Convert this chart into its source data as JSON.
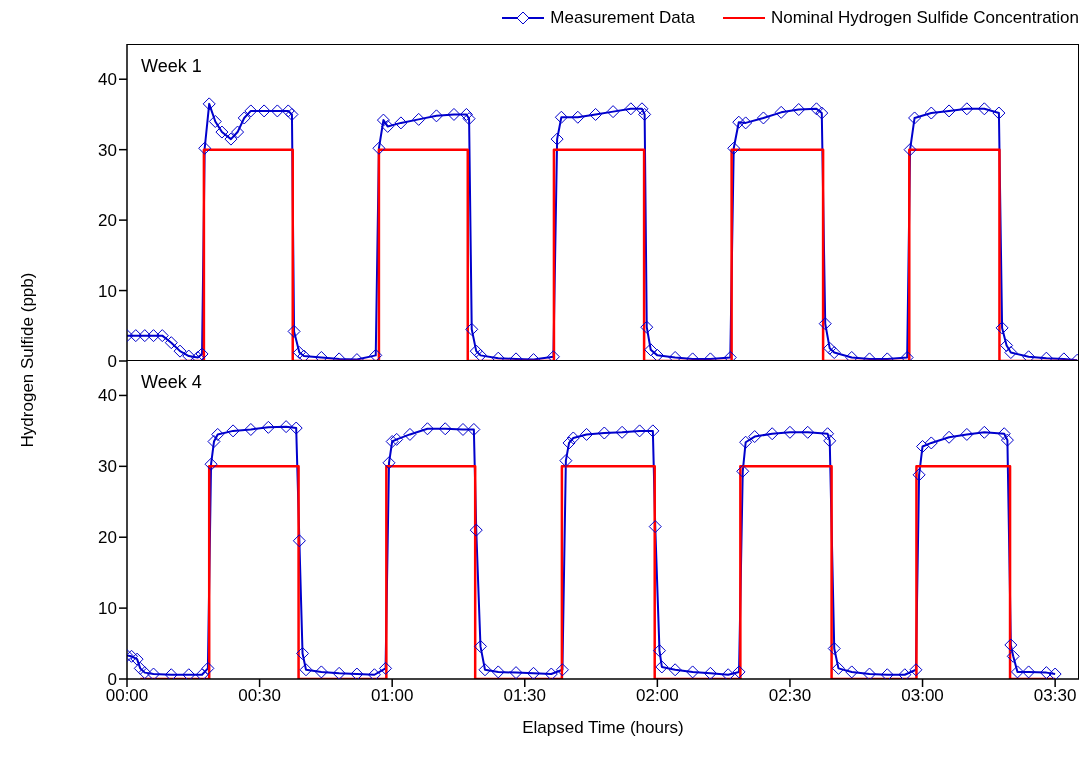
{
  "chart_data": [
    {
      "type": "line",
      "title": "Week 1",
      "ylabel": "Hydrogen Sulfide (ppb)",
      "legend": "top",
      "tick_labels": "y",
      "xlim": [
        0,
        3.59
      ],
      "ylim": [
        0,
        45
      ],
      "yticks": [
        0,
        10,
        20,
        30,
        40
      ],
      "series": [
        {
          "name": "Measurement Data",
          "color": "#0000cc",
          "marker": "diamond",
          "x": [
            0,
            0.033,
            0.067,
            0.1,
            0.133,
            0.167,
            0.2,
            0.233,
            0.267,
            0.283,
            0.293,
            0.31,
            0.333,
            0.358,
            0.392,
            0.417,
            0.442,
            0.467,
            0.517,
            0.567,
            0.608,
            0.622,
            0.63,
            0.65,
            0.667,
            0.733,
            0.8,
            0.867,
            0.938,
            0.95,
            0.967,
            0.983,
            1.033,
            1.1,
            1.167,
            1.233,
            1.28,
            1.29,
            1.3,
            1.317,
            1.333,
            1.4,
            1.467,
            1.533,
            1.608,
            1.622,
            1.638,
            1.7,
            1.767,
            1.833,
            1.9,
            1.942,
            1.952,
            1.96,
            1.975,
            2.0,
            2.067,
            2.133,
            2.2,
            2.275,
            2.288,
            2.307,
            2.333,
            2.4,
            2.467,
            2.533,
            2.6,
            2.62,
            2.633,
            2.65,
            2.667,
            2.733,
            2.8,
            2.867,
            2.942,
            2.953,
            2.97,
            3.033,
            3.1,
            3.167,
            3.233,
            3.288,
            3.3,
            3.317,
            3.333,
            3.4,
            3.467,
            3.533,
            3.583
          ],
          "values": [
            3.6,
            3.6,
            3.6,
            3.6,
            3.6,
            2.6,
            1.4,
            0.7,
            0.5,
            1.0,
            30.2,
            36.5,
            34,
            32.5,
            31.5,
            32.5,
            34.5,
            35.5,
            35.5,
            35.5,
            35.5,
            35,
            4.2,
            1.2,
            0.7,
            0.5,
            0.3,
            0.2,
            0.8,
            30.2,
            34.2,
            33.3,
            33.8,
            34.3,
            34.8,
            35,
            35,
            34.4,
            4.5,
            1.4,
            0.8,
            0.4,
            0.3,
            0.2,
            0.6,
            31.5,
            34.6,
            34.6,
            35,
            35.4,
            35.8,
            35.8,
            35,
            4.8,
            1.6,
            0.8,
            0.5,
            0.3,
            0.3,
            0.5,
            30.2,
            33.9,
            33.8,
            34.5,
            35.3,
            35.7,
            35.8,
            35.2,
            5.3,
            1.8,
            1.2,
            0.5,
            0.3,
            0.3,
            0.5,
            30,
            34.5,
            35.2,
            35.5,
            35.8,
            35.8,
            35.2,
            4.7,
            2.2,
            1.2,
            0.6,
            0.4,
            0.3,
            0.1
          ]
        },
        {
          "name": "Nominal Hydrogen Sulfide Concentration",
          "color": "#ff0000",
          "marker": "none",
          "x": [
            0.2,
            0.29,
            0.29,
            0.625,
            0.625,
            0.95,
            0.95,
            1.285,
            1.285,
            1.61,
            1.61,
            1.95,
            1.95,
            2.28,
            2.28,
            2.625,
            2.625,
            2.95,
            2.95,
            3.29,
            3.29,
            3.583
          ],
          "values": [
            0,
            0,
            30,
            30,
            0,
            0,
            30,
            30,
            0,
            0,
            30,
            30,
            0,
            0,
            30,
            30,
            0,
            0,
            30,
            30,
            0,
            0
          ]
        }
      ]
    },
    {
      "type": "line",
      "title": "Week 4",
      "xlabel": "Elapsed Time (hours)",
      "xlim": [
        0,
        3.59
      ],
      "xticks": [
        {
          "value": 0,
          "label": "00:00"
        },
        {
          "value": 0.5,
          "label": "00:30"
        },
        {
          "value": 1,
          "label": "01:00"
        },
        {
          "value": 1.5,
          "label": "01:30"
        },
        {
          "value": 2,
          "label": "02:00"
        },
        {
          "value": 2.5,
          "label": "02:30"
        },
        {
          "value": 3,
          "label": "03:00"
        },
        {
          "value": 3.5,
          "label": "03:30"
        }
      ],
      "ylim": [
        0,
        45
      ],
      "yticks": [
        0,
        10,
        20,
        30,
        40
      ],
      "series": [
        {
          "color": "#0000cc",
          "marker": "diamond",
          "x": [
            0,
            0.017,
            0.038,
            0.05,
            0.067,
            0.1,
            0.167,
            0.233,
            0.283,
            0.305,
            0.317,
            0.328,
            0.342,
            0.4,
            0.467,
            0.533,
            0.6,
            0.638,
            0.65,
            0.662,
            0.675,
            0.733,
            0.8,
            0.867,
            0.933,
            0.975,
            0.988,
            1.0,
            1.017,
            1.067,
            1.133,
            1.2,
            1.267,
            1.308,
            1.317,
            1.333,
            1.35,
            1.4,
            1.467,
            1.533,
            1.6,
            1.642,
            1.655,
            1.667,
            1.683,
            1.733,
            1.8,
            1.867,
            1.933,
            1.983,
            1.992,
            2.008,
            2.017,
            2.067,
            2.133,
            2.2,
            2.267,
            2.308,
            2.322,
            2.333,
            2.367,
            2.433,
            2.5,
            2.567,
            2.642,
            2.65,
            2.667,
            2.683,
            2.733,
            2.8,
            2.867,
            2.933,
            2.975,
            2.987,
            3.0,
            3.033,
            3.1,
            3.167,
            3.233,
            3.308,
            3.32,
            3.333,
            3.342,
            3.358,
            3.4,
            3.467,
            3.5
          ],
          "values": [
            3.3,
            3.2,
            2.8,
            1.5,
            0.9,
            0.7,
            0.6,
            0.6,
            0.6,
            1.5,
            30.3,
            33.5,
            34.5,
            35,
            35.2,
            35.5,
            35.6,
            35.4,
            19.5,
            3.6,
            1.3,
            1.0,
            0.8,
            0.7,
            0.6,
            1.5,
            30.5,
            33.5,
            33.8,
            34.5,
            35.3,
            35.3,
            35.2,
            35.2,
            21,
            4.6,
            1.3,
            1.0,
            0.9,
            0.8,
            0.7,
            1.3,
            30.8,
            33.3,
            34,
            34.5,
            34.7,
            34.8,
            35,
            35,
            21.5,
            4.0,
            1.7,
            1.3,
            1.0,
            0.8,
            0.6,
            1.0,
            29.3,
            33.4,
            34.2,
            34.6,
            34.8,
            34.8,
            34.6,
            33.6,
            4.3,
            1.5,
            1.0,
            0.7,
            0.6,
            0.6,
            1.3,
            28.8,
            32.8,
            33.3,
            34.1,
            34.5,
            34.8,
            34.6,
            33.7,
            4.8,
            3.2,
            1.0,
            1.0,
            0.9,
            0.7
          ]
        },
        {
          "color": "#ff0000",
          "marker": "none",
          "x": [
            0.05,
            0.31,
            0.31,
            0.647,
            0.647,
            0.978,
            0.978,
            1.313,
            1.313,
            1.64,
            1.64,
            1.99,
            1.99,
            2.313,
            2.313,
            2.657,
            2.657,
            2.977,
            2.977,
            3.33,
            3.33,
            3.5
          ],
          "values": [
            0,
            0,
            30,
            30,
            0,
            0,
            30,
            30,
            0,
            0,
            30,
            30,
            0,
            0,
            30,
            30,
            0,
            0,
            30,
            30,
            0,
            0
          ]
        }
      ]
    }
  ]
}
